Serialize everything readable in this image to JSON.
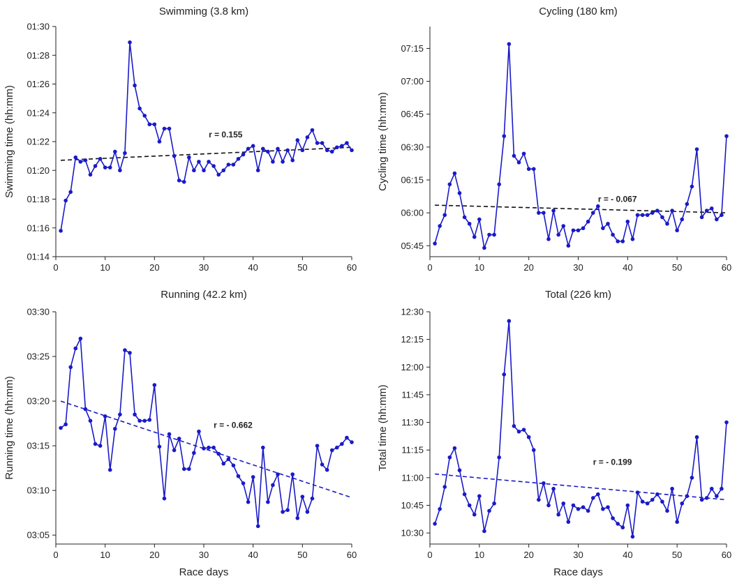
{
  "chart_data": [
    {
      "type": "line",
      "title": "Swimming (3.8 km)",
      "xlabel": "",
      "ylabel": "Swimming time (hh:mm)",
      "xlim": [
        0,
        60
      ],
      "ylim": [
        74,
        90
      ],
      "xticks": [
        0,
        10,
        20,
        30,
        40,
        50,
        60
      ],
      "xtick_labels": [
        "0",
        "10",
        "20",
        "30",
        "40",
        "50",
        "60"
      ],
      "yticks": [
        74,
        76,
        78,
        80,
        82,
        84,
        86,
        88,
        90
      ],
      "ytick_labels": [
        "01:14",
        "01:16",
        "01:18",
        "01:20",
        "01:22",
        "01:24",
        "01:26",
        "01:28",
        "01:30"
      ],
      "x": [
        1,
        2,
        3,
        4,
        5,
        6,
        7,
        8,
        9,
        10,
        11,
        12,
        13,
        14,
        15,
        16,
        17,
        18,
        19,
        20,
        21,
        22,
        23,
        24,
        25,
        26,
        27,
        28,
        29,
        30,
        31,
        32,
        33,
        34,
        35,
        36,
        37,
        38,
        39,
        40,
        41,
        42,
        43,
        44,
        45,
        46,
        47,
        48,
        49,
        50,
        51,
        52,
        53,
        54,
        55,
        56,
        57,
        58,
        59,
        60
      ],
      "series": [
        {
          "name": "Swimming",
          "values": [
            75.8,
            77.9,
            78.5,
            80.9,
            80.6,
            80.7,
            79.7,
            80.3,
            80.8,
            80.2,
            80.2,
            81.3,
            80.0,
            81.2,
            88.9,
            85.9,
            84.3,
            83.8,
            83.2,
            83.2,
            82.0,
            82.9,
            82.9,
            81.0,
            79.3,
            79.2,
            80.9,
            80.0,
            80.6,
            80.0,
            80.6,
            80.3,
            79.7,
            80.0,
            80.4,
            80.4,
            80.8,
            81.1,
            81.5,
            81.7,
            80.0,
            81.5,
            81.3,
            80.6,
            81.5,
            80.6,
            81.4,
            80.7,
            82.1,
            81.4,
            82.3,
            82.8,
            81.9,
            81.9,
            81.4,
            81.3,
            81.6,
            81.7,
            81.9,
            81.4
          ],
          "color": "#1a1ac8"
        }
      ],
      "trend": {
        "start": [
          1,
          80.7
        ],
        "end": [
          60,
          81.6
        ],
        "r_label": "r = 0.155",
        "r_value": 0.155,
        "label_at": [
          31,
          82.3
        ],
        "style": "dashed",
        "color": "#111111"
      }
    },
    {
      "type": "line",
      "title": "Cycling (180 km)",
      "xlabel": "",
      "ylabel": "Cycling time (hh:mm)",
      "xlim": [
        0,
        60
      ],
      "ylim": [
        340,
        445
      ],
      "xticks": [
        0,
        10,
        20,
        30,
        40,
        50,
        60
      ],
      "xtick_labels": [
        "0",
        "10",
        "20",
        "30",
        "40",
        "50",
        "60"
      ],
      "yticks": [
        345,
        360,
        375,
        390,
        405,
        420,
        435
      ],
      "ytick_labels": [
        "05:45",
        "06:00",
        "06:15",
        "06:30",
        "06:45",
        "07:00",
        "07:15"
      ],
      "x": [
        1,
        2,
        3,
        4,
        5,
        6,
        7,
        8,
        9,
        10,
        11,
        12,
        13,
        14,
        15,
        16,
        17,
        18,
        19,
        20,
        21,
        22,
        23,
        24,
        25,
        26,
        27,
        28,
        29,
        30,
        31,
        32,
        33,
        34,
        35,
        36,
        37,
        38,
        39,
        40,
        41,
        42,
        43,
        44,
        45,
        46,
        47,
        48,
        49,
        50,
        51,
        52,
        53,
        54,
        55,
        56,
        57,
        58,
        59,
        60
      ],
      "series": [
        {
          "name": "Cycling",
          "values": [
            346,
            354,
            359,
            373,
            378,
            369,
            358,
            355,
            349,
            357,
            344,
            350,
            350,
            373,
            395,
            437,
            386,
            383,
            387,
            380,
            380,
            360,
            360,
            348,
            361,
            350,
            354,
            345,
            352,
            352,
            353,
            356,
            360,
            363,
            353,
            355,
            350,
            347,
            347,
            356,
            348,
            359,
            359,
            359,
            360,
            361,
            358,
            355,
            361,
            352,
            357,
            364,
            372,
            389,
            358,
            361,
            362,
            357,
            359,
            395
          ],
          "color": "#1a1ac8"
        }
      ],
      "trend": {
        "start": [
          1,
          363.5
        ],
        "end": [
          60,
          360
        ],
        "r_label": "r = - 0.067",
        "r_value": -0.067,
        "label_at": [
          34,
          365
        ],
        "style": "dashed",
        "color": "#111111"
      }
    },
    {
      "type": "line",
      "title": "Running (42.2 km)",
      "xlabel": "Race days",
      "ylabel": "Running time (hh:mm)",
      "xlim": [
        0,
        60
      ],
      "ylim": [
        184,
        210
      ],
      "xticks": [
        0,
        10,
        20,
        30,
        40,
        50,
        60
      ],
      "xtick_labels": [
        "0",
        "10",
        "20",
        "30",
        "40",
        "50",
        "60"
      ],
      "yticks": [
        185,
        190,
        195,
        200,
        205,
        210
      ],
      "ytick_labels": [
        "03:05",
        "03:10",
        "03:15",
        "03:20",
        "03:25",
        "03:30"
      ],
      "x": [
        1,
        2,
        3,
        4,
        5,
        6,
        7,
        8,
        9,
        10,
        11,
        12,
        13,
        14,
        15,
        16,
        17,
        18,
        19,
        20,
        21,
        22,
        23,
        24,
        25,
        26,
        27,
        28,
        29,
        30,
        31,
        32,
        33,
        34,
        35,
        36,
        37,
        38,
        39,
        40,
        41,
        42,
        43,
        44,
        45,
        46,
        47,
        48,
        49,
        50,
        51,
        52,
        53,
        54,
        55,
        56,
        57,
        58,
        59,
        60
      ],
      "series": [
        {
          "name": "Running",
          "values": [
            197.0,
            197.4,
            203.8,
            205.9,
            207.0,
            199.1,
            197.8,
            195.2,
            195.0,
            198.3,
            192.3,
            196.9,
            198.5,
            205.7,
            205.4,
            198.5,
            197.8,
            197.8,
            197.9,
            201.8,
            194.9,
            189.1,
            196.3,
            194.5,
            195.8,
            192.4,
            192.4,
            194.2,
            196.6,
            194.7,
            194.8,
            194.8,
            194.1,
            193.0,
            193.5,
            192.8,
            191.6,
            190.8,
            188.7,
            191.5,
            186.0,
            194.8,
            188.7,
            190.6,
            191.8,
            187.6,
            187.8,
            191.8,
            186.9,
            189.3,
            187.6,
            189.1,
            195.0,
            192.9,
            192.3,
            194.5,
            194.8,
            195.2,
            195.9,
            195.4
          ],
          "color": "#1a1ac8"
        }
      ],
      "trend": {
        "start": [
          1,
          200.0
        ],
        "end": [
          60,
          189.2
        ],
        "r_label": "r = - 0.662",
        "r_value": -0.662,
        "label_at": [
          32,
          197.0
        ],
        "style": "dashed",
        "color": "#1a1ac8"
      }
    },
    {
      "type": "line",
      "title": "Total (226 km)",
      "xlabel": "Race days",
      "ylabel": "Total time (hh:mm)",
      "xlim": [
        0,
        60
      ],
      "ylim": [
        624,
        750
      ],
      "xticks": [
        0,
        10,
        20,
        30,
        40,
        50,
        60
      ],
      "xtick_labels": [
        "0",
        "10",
        "20",
        "30",
        "40",
        "50",
        "60"
      ],
      "yticks": [
        630,
        645,
        660,
        675,
        690,
        705,
        720,
        735,
        750
      ],
      "ytick_labels": [
        "10:30",
        "10:45",
        "11:00",
        "11:15",
        "11:30",
        "11:45",
        "12:00",
        "12:15",
        "12:30"
      ],
      "x": [
        1,
        2,
        3,
        4,
        5,
        6,
        7,
        8,
        9,
        10,
        11,
        12,
        13,
        14,
        15,
        16,
        17,
        18,
        19,
        20,
        21,
        22,
        23,
        24,
        25,
        26,
        27,
        28,
        29,
        30,
        31,
        32,
        33,
        34,
        35,
        36,
        37,
        38,
        39,
        40,
        41,
        42,
        43,
        44,
        45,
        46,
        47,
        48,
        49,
        50,
        51,
        52,
        53,
        54,
        55,
        56,
        57,
        58,
        59,
        60
      ],
      "series": [
        {
          "name": "Total",
          "values": [
            635,
            643,
            655,
            671,
            676,
            664,
            651,
            645,
            640,
            650,
            631,
            642,
            646,
            671,
            716,
            745,
            688,
            685,
            686,
            682,
            675,
            648,
            657,
            645,
            654,
            640,
            646,
            636,
            645,
            643,
            644,
            642,
            649,
            651,
            643,
            644,
            638,
            635,
            633,
            645,
            628,
            652,
            647,
            646,
            648,
            651,
            647,
            642,
            654,
            636,
            646,
            650,
            660,
            682,
            648,
            649,
            654,
            650,
            654,
            690
          ],
          "color": "#1a1ac8"
        }
      ],
      "trend": {
        "start": [
          1,
          662
        ],
        "end": [
          60,
          648
        ],
        "r_label": "r = - 0.199",
        "r_value": -0.199,
        "label_at": [
          33,
          667
        ],
        "style": "dashed",
        "color": "#1a1ac8"
      }
    }
  ]
}
